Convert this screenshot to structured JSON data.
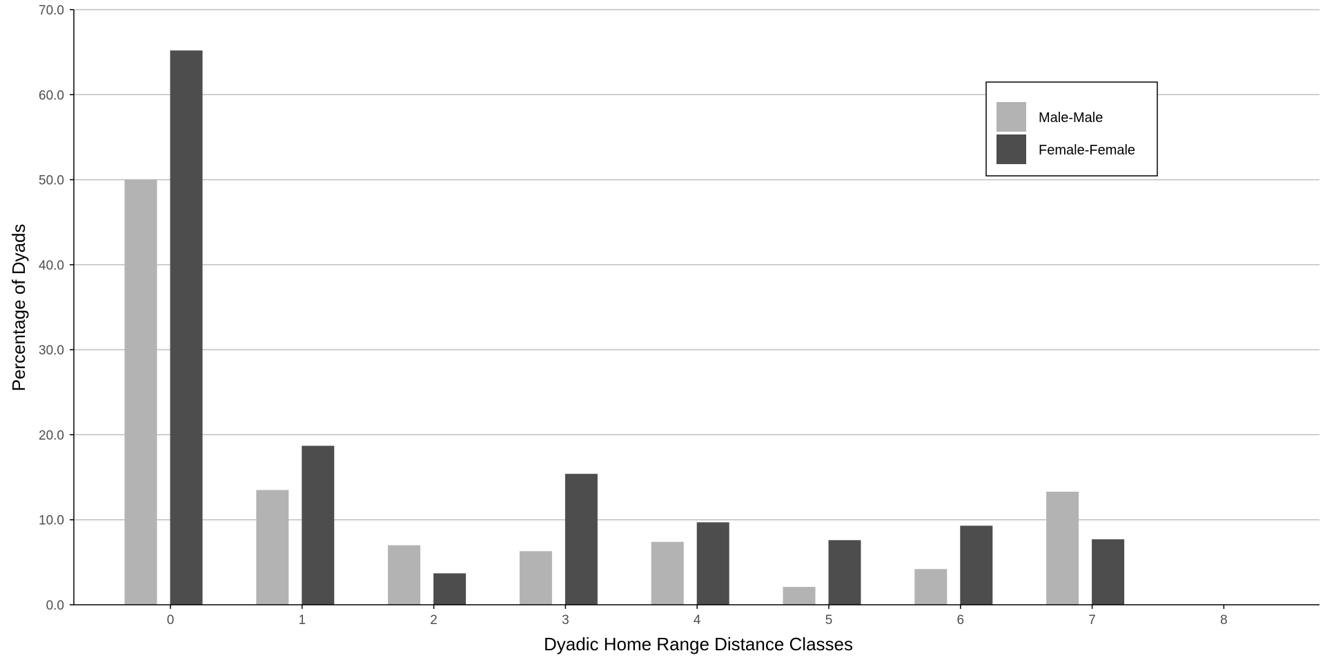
{
  "chart_data": {
    "type": "bar",
    "title": "",
    "xlabel": "Dyadic Home Range Distance Classes",
    "ylabel": "Percentage of Dyads",
    "categories": [
      "0",
      "1",
      "2",
      "3",
      "4",
      "5",
      "6",
      "7",
      "8"
    ],
    "series": [
      {
        "name": "Male-Male",
        "color": "#b3b3b3",
        "values": [
          50.0,
          13.5,
          7.0,
          6.3,
          7.4,
          2.1,
          4.2,
          13.3,
          0
        ]
      },
      {
        "name": "Female-Female",
        "color": "#4d4d4d",
        "values": [
          65.2,
          18.7,
          3.7,
          15.4,
          9.7,
          7.6,
          9.3,
          7.7,
          0
        ]
      }
    ],
    "ylim": [
      0,
      70
    ],
    "yticks": [
      "0.0",
      "10.0",
      "20.0",
      "30.0",
      "40.0",
      "50.0",
      "60.0",
      "70.0"
    ],
    "grid": "horizontal",
    "legend_position": "top-right"
  }
}
